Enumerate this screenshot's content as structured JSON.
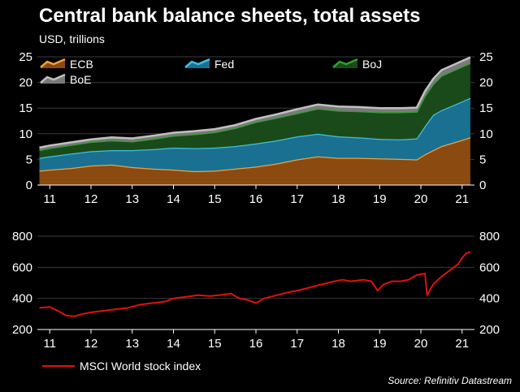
{
  "title": "Central bank balance sheets, total assets",
  "subtitle": "USD, trillions",
  "source": "Source: Refinitiv Datastream",
  "chart_data": [
    {
      "type": "area",
      "stacked": true,
      "title": "Central bank balance sheets, total assets",
      "ylabel": "USD, trillions",
      "ylim": [
        0,
        25
      ],
      "yticks": [
        "0",
        "5",
        "10",
        "15",
        "20",
        "25"
      ],
      "xlim": [
        2010.7,
        2021.3
      ],
      "xticks": [
        {
          "value": 2011,
          "label": "11"
        },
        {
          "value": 2012,
          "label": "12"
        },
        {
          "value": 2013,
          "label": "13"
        },
        {
          "value": 2014,
          "label": "14"
        },
        {
          "value": 2015,
          "label": "15"
        },
        {
          "value": 2016,
          "label": "16"
        },
        {
          "value": 2017,
          "label": "17"
        },
        {
          "value": 2018,
          "label": "18"
        },
        {
          "value": 2019,
          "label": "19"
        },
        {
          "value": 2020,
          "label": "20"
        },
        {
          "value": 2021,
          "label": "21"
        }
      ],
      "x": [
        2010.75,
        2011.0,
        2011.5,
        2012.0,
        2012.5,
        2013.0,
        2013.5,
        2014.0,
        2014.5,
        2015.0,
        2015.5,
        2016.0,
        2016.5,
        2017.0,
        2017.5,
        2018.0,
        2018.5,
        2019.0,
        2019.5,
        2019.9,
        2020.1,
        2020.3,
        2020.5,
        2021.0,
        2021.2
      ],
      "series": [
        {
          "name": "ECB",
          "color": "#f0a040",
          "fill": "#8a4a10",
          "values": [
            2.8,
            3.0,
            3.3,
            3.8,
            4.0,
            3.5,
            3.2,
            3.0,
            2.7,
            2.8,
            3.2,
            3.6,
            4.2,
            5.0,
            5.6,
            5.3,
            5.3,
            5.2,
            5.1,
            5.0,
            6.0,
            6.8,
            7.6,
            8.8,
            9.3
          ]
        },
        {
          "name": "Fed",
          "color": "#40c0e0",
          "fill": "#1a7090",
          "values": [
            2.5,
            2.6,
            2.8,
            2.8,
            2.8,
            3.3,
            3.8,
            4.3,
            4.5,
            4.5,
            4.4,
            4.5,
            4.5,
            4.5,
            4.4,
            4.2,
            4.0,
            3.8,
            3.8,
            4.1,
            5.5,
            6.9,
            7.0,
            7.5,
            7.7
          ]
        },
        {
          "name": "BoJ",
          "color": "#30a030",
          "fill": "#1a4a1a",
          "values": [
            1.5,
            1.6,
            1.7,
            1.8,
            1.9,
            1.7,
            2.0,
            2.3,
            2.7,
            3.0,
            3.5,
            4.2,
            4.4,
            4.5,
            4.9,
            5.0,
            5.1,
            5.2,
            5.3,
            5.2,
            5.9,
            6.0,
            6.7,
            6.8,
            6.8
          ]
        },
        {
          "name": "BoE",
          "color": "#c0c0c0",
          "fill": "#7a7a7a",
          "values": [
            0.5,
            0.5,
            0.5,
            0.5,
            0.6,
            0.6,
            0.6,
            0.6,
            0.6,
            0.6,
            0.6,
            0.6,
            0.7,
            0.8,
            0.8,
            0.8,
            0.8,
            0.8,
            0.8,
            0.8,
            0.9,
            1.0,
            1.1,
            1.1,
            1.1
          ]
        }
      ]
    },
    {
      "type": "line",
      "ylim": [
        200,
        800
      ],
      "yticks": [
        "200",
        "400",
        "600",
        "800"
      ],
      "xlim": [
        2010.7,
        2021.3
      ],
      "x": [
        2010.75,
        2011.0,
        2011.2,
        2011.4,
        2011.6,
        2011.8,
        2012.0,
        2012.3,
        2012.6,
        2012.9,
        2013.2,
        2013.5,
        2013.8,
        2014.0,
        2014.3,
        2014.6,
        2014.9,
        2015.1,
        2015.4,
        2015.6,
        2015.8,
        2016.0,
        2016.2,
        2016.5,
        2016.8,
        2017.0,
        2017.3,
        2017.6,
        2017.9,
        2018.1,
        2018.3,
        2018.6,
        2018.8,
        2018.95,
        2019.1,
        2019.3,
        2019.5,
        2019.7,
        2019.9,
        2020.1,
        2020.15,
        2020.3,
        2020.5,
        2020.7,
        2020.9,
        2021.0,
        2021.1,
        2021.2
      ],
      "series": [
        {
          "name": "MSCI World stock index",
          "color": "#e01010",
          "values": [
            340,
            345,
            320,
            290,
            285,
            300,
            310,
            320,
            330,
            340,
            360,
            370,
            380,
            400,
            410,
            420,
            415,
            420,
            430,
            400,
            390,
            370,
            400,
            420,
            440,
            450,
            470,
            490,
            510,
            520,
            510,
            520,
            510,
            450,
            490,
            510,
            510,
            520,
            550,
            560,
            420,
            490,
            540,
            580,
            620,
            660,
            690,
            700
          ]
        }
      ]
    }
  ]
}
